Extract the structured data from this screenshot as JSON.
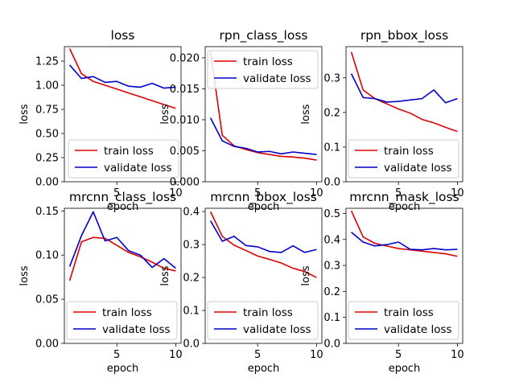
{
  "colors": {
    "train": "#dd0000",
    "validate": "#0000cc",
    "legend_border": "#cccccc"
  },
  "chart_data": [
    {
      "type": "line",
      "title": "loss",
      "xlabel": "epoch",
      "ylabel": "loss",
      "xlim": [
        0.55,
        10.45
      ],
      "ylim": [
        0,
        1.4
      ],
      "xticks": [
        5,
        10
      ],
      "yticks": [
        0.0,
        0.25,
        0.5,
        0.75,
        1.0,
        1.25
      ],
      "ytick_labels": [
        "0.00",
        "0.25",
        "0.50",
        "0.75",
        "1.00",
        "1.25"
      ],
      "legend": "lower-left",
      "grid": false,
      "x": [
        1,
        2,
        3,
        4,
        5,
        6,
        7,
        8,
        9,
        10
      ],
      "series": [
        {
          "name": "train loss",
          "values": [
            1.38,
            1.12,
            1.04,
            1.0,
            0.96,
            0.92,
            0.88,
            0.84,
            0.8,
            0.76
          ]
        },
        {
          "name": "validate loss",
          "values": [
            1.21,
            1.07,
            1.09,
            1.03,
            1.04,
            0.99,
            0.98,
            1.02,
            0.97,
            0.98
          ]
        }
      ]
    },
    {
      "type": "line",
      "title": "rpn_class_loss",
      "xlabel": "epoch",
      "ylabel": "loss",
      "xlim": [
        0.55,
        10.45
      ],
      "ylim": [
        0,
        0.0218
      ],
      "xticks": [
        5,
        10
      ],
      "yticks": [
        0.0,
        0.005,
        0.01,
        0.015,
        0.02
      ],
      "ytick_labels": [
        "0.000",
        "0.005",
        "0.010",
        "0.015",
        "0.020"
      ],
      "legend": "upper-right",
      "grid": false,
      "x": [
        1,
        2,
        3,
        4,
        5,
        6,
        7,
        8,
        9,
        10
      ],
      "series": [
        {
          "name": "train loss",
          "values": [
            0.021,
            0.0075,
            0.0058,
            0.0052,
            0.0047,
            0.0044,
            0.0041,
            0.004,
            0.0038,
            0.0035
          ]
        },
        {
          "name": "validate loss",
          "values": [
            0.0103,
            0.0066,
            0.0057,
            0.0054,
            0.0048,
            0.0049,
            0.0045,
            0.0048,
            0.0046,
            0.0044
          ]
        }
      ]
    },
    {
      "type": "line",
      "title": "rpn_bbox_loss",
      "xlabel": "epoch",
      "ylabel": "loss",
      "xlim": [
        0.55,
        10.45
      ],
      "ylim": [
        0,
        0.39
      ],
      "xticks": [
        5,
        10
      ],
      "yticks": [
        0.0,
        0.1,
        0.2,
        0.3
      ],
      "ytick_labels": [
        "0.0",
        "0.1",
        "0.2",
        "0.3"
      ],
      "legend": "lower-right",
      "grid": false,
      "x": [
        1,
        2,
        3,
        4,
        5,
        6,
        7,
        8,
        9,
        10
      ],
      "series": [
        {
          "name": "train loss",
          "values": [
            0.375,
            0.265,
            0.24,
            0.225,
            0.21,
            0.198,
            0.18,
            0.17,
            0.157,
            0.145
          ]
        },
        {
          "name": "validate loss",
          "values": [
            0.312,
            0.243,
            0.24,
            0.23,
            0.232,
            0.236,
            0.24,
            0.265,
            0.228,
            0.24
          ]
        }
      ]
    },
    {
      "type": "line",
      "title": "mrcnn_class_loss",
      "xlabel": "epoch",
      "ylabel": "loss",
      "xlim": [
        0.55,
        10.45
      ],
      "ylim": [
        0,
        0.153
      ],
      "xticks": [
        5,
        10
      ],
      "yticks": [
        0.0,
        0.05,
        0.1,
        0.15
      ],
      "ytick_labels": [
        "0.00",
        "0.05",
        "0.10",
        "0.15"
      ],
      "legend": "lower-right",
      "grid": false,
      "x": [
        1,
        2,
        3,
        4,
        5,
        6,
        7,
        8,
        9,
        10
      ],
      "series": [
        {
          "name": "train loss",
          "values": [
            0.071,
            0.115,
            0.12,
            0.119,
            0.111,
            0.103,
            0.098,
            0.092,
            0.085,
            0.082
          ]
        },
        {
          "name": "validate loss",
          "values": [
            0.087,
            0.122,
            0.149,
            0.116,
            0.12,
            0.105,
            0.1,
            0.086,
            0.096,
            0.085
          ]
        }
      ]
    },
    {
      "type": "line",
      "title": "mrcnn_bbox_loss",
      "xlabel": "epoch",
      "ylabel": "loss",
      "xlim": [
        0.55,
        10.45
      ],
      "ylim": [
        0,
        0.41
      ],
      "xticks": [
        5,
        10
      ],
      "yticks": [
        0.0,
        0.1,
        0.2,
        0.3,
        0.4
      ],
      "ytick_labels": [
        "0.0",
        "0.1",
        "0.2",
        "0.3",
        "0.4"
      ],
      "legend": "lower-right",
      "grid": false,
      "x": [
        1,
        2,
        3,
        4,
        5,
        6,
        7,
        8,
        9,
        10
      ],
      "series": [
        {
          "name": "train loss",
          "values": [
            0.4,
            0.325,
            0.298,
            0.282,
            0.265,
            0.255,
            0.244,
            0.228,
            0.218,
            0.2
          ]
        },
        {
          "name": "validate loss",
          "values": [
            0.372,
            0.31,
            0.325,
            0.297,
            0.293,
            0.279,
            0.276,
            0.296,
            0.276,
            0.285
          ]
        }
      ]
    },
    {
      "type": "line",
      "title": "mrcnn_mask_loss",
      "xlabel": "epoch",
      "ylabel": "loss",
      "xlim": [
        0.55,
        10.45
      ],
      "ylim": [
        0,
        0.52
      ],
      "xticks": [
        5,
        10
      ],
      "yticks": [
        0.0,
        0.1,
        0.2,
        0.3,
        0.4,
        0.5
      ],
      "ytick_labels": [
        "0.0",
        "0.1",
        "0.2",
        "0.3",
        "0.4",
        "0.5"
      ],
      "legend": "lower-right",
      "grid": false,
      "x": [
        1,
        2,
        3,
        4,
        5,
        6,
        7,
        8,
        9,
        10
      ],
      "series": [
        {
          "name": "train loss",
          "values": [
            0.51,
            0.41,
            0.385,
            0.375,
            0.365,
            0.36,
            0.355,
            0.35,
            0.345,
            0.335
          ]
        },
        {
          "name": "validate loss",
          "values": [
            0.428,
            0.39,
            0.375,
            0.38,
            0.39,
            0.362,
            0.36,
            0.365,
            0.36,
            0.362
          ]
        }
      ]
    }
  ]
}
